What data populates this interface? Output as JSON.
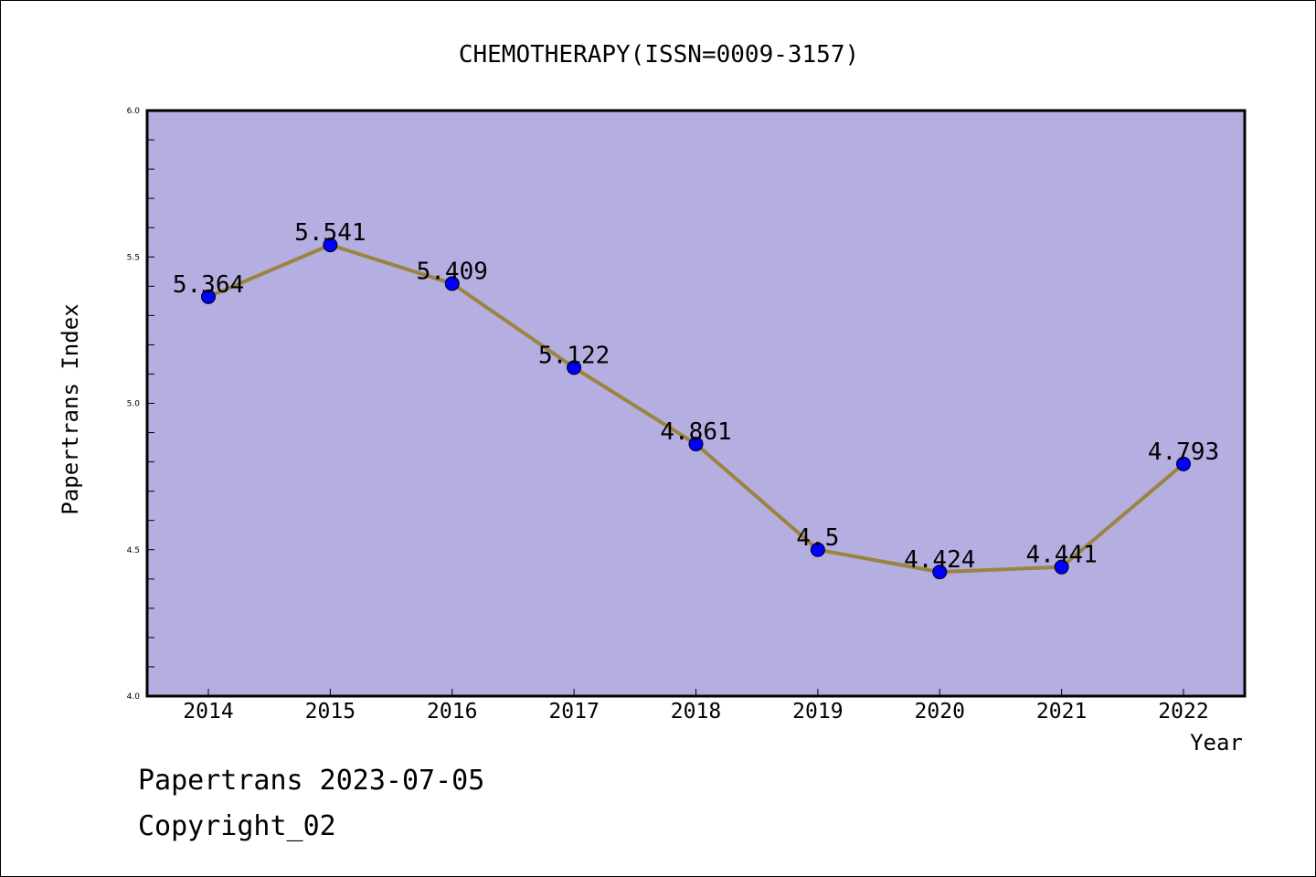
{
  "chart_data": {
    "type": "line",
    "title": "CHEMOTHERAPY(ISSN=0009-3157)",
    "xlabel": "Year",
    "ylabel": "Papertrans Index",
    "categories": [
      "2014",
      "2015",
      "2016",
      "2017",
      "2018",
      "2019",
      "2020",
      "2021",
      "2022"
    ],
    "values": [
      5.364,
      5.541,
      5.409,
      5.122,
      4.861,
      4.5,
      4.424,
      4.441,
      4.793
    ],
    "data_labels": [
      "5.364",
      "5.541",
      "5.409",
      "5.122",
      "4.861",
      "4.5",
      "4.424",
      "4.441",
      "4.793"
    ],
    "ylim": [
      4.0,
      6.0
    ],
    "yticks": [
      "4.0",
      "4.5",
      "5.0",
      "5.5",
      "6.0"
    ],
    "grid": false,
    "colors": {
      "plot_background": "#b5aee1",
      "line": "#9b8440",
      "marker": "#0000ff"
    }
  },
  "footer": {
    "line1": "Papertrans 2023-07-05",
    "line2": "Copyright_02"
  }
}
